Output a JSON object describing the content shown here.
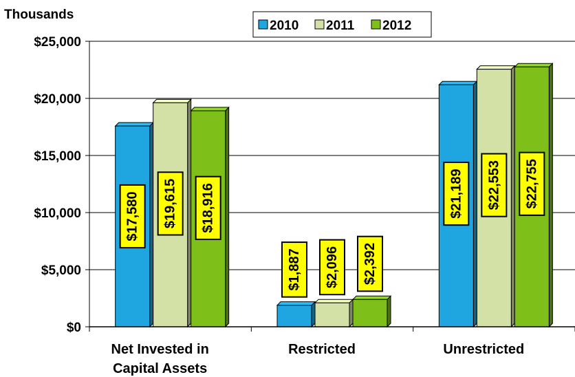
{
  "chart_data": {
    "type": "bar",
    "unit_label": "Thousands",
    "categories": [
      "Net Invested in Capital Assets",
      "Restricted",
      "Unrestricted"
    ],
    "category_lines": [
      [
        "Net Invested in",
        "Capital Assets"
      ],
      [
        "Restricted"
      ],
      [
        "Unrestricted"
      ]
    ],
    "series": [
      {
        "name": "2010",
        "values": [
          17580,
          1887,
          21189
        ],
        "labels": [
          "$17,580",
          "$1,887",
          "$21,189"
        ],
        "color": "#1fa6e0"
      },
      {
        "name": "2011",
        "values": [
          19615,
          2096,
          22553
        ],
        "labels": [
          "$19,615",
          "$2,096",
          "$22,553"
        ],
        "color": "#d3e0a6"
      },
      {
        "name": "2012",
        "values": [
          18916,
          2392,
          22755
        ],
        "labels": [
          "$18,916",
          "$2,392",
          "$22,755"
        ],
        "color": "#7fbf1a"
      }
    ],
    "ylim": [
      0,
      25000
    ],
    "yticks": [
      0,
      5000,
      10000,
      15000,
      20000,
      25000
    ],
    "ytick_labels": [
      "$0",
      "$5,000",
      "$10,000",
      "$15,000",
      "$20,000",
      "$25,000"
    ],
    "grid": true,
    "legend": "top-center",
    "label_box_color": "#ffff00"
  }
}
